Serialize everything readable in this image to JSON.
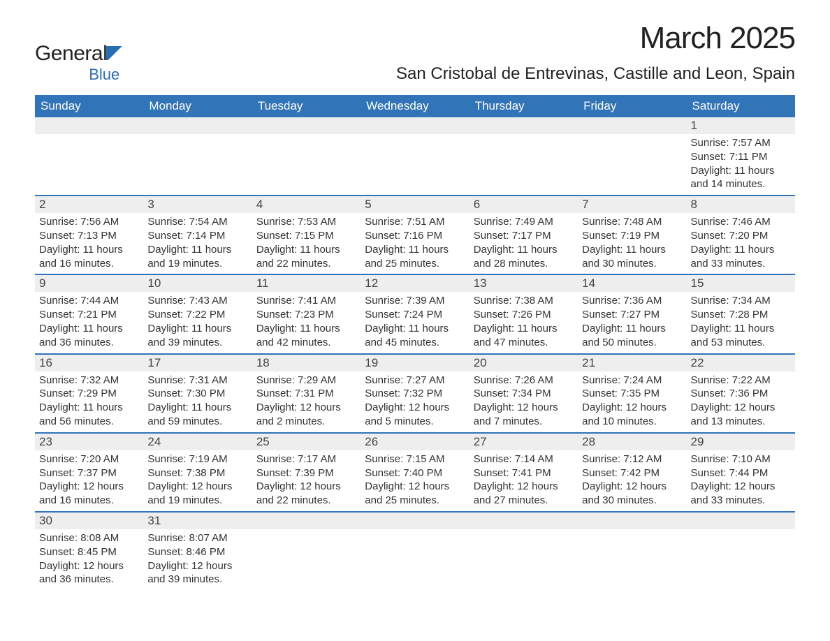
{
  "logo": {
    "word1": "General",
    "word2": "Blue"
  },
  "title": "March 2025",
  "location": "San Cristobal de Entrevinas, Castille and Leon, Spain",
  "colors": {
    "header_bg": "#3174b8",
    "header_text": "#ffffff",
    "daynum_bg": "#eeeeee",
    "row_divider": "#3174b8",
    "body_text": "#333333",
    "logo_blue": "#2a6db5"
  },
  "day_names": [
    "Sunday",
    "Monday",
    "Tuesday",
    "Wednesday",
    "Thursday",
    "Friday",
    "Saturday"
  ],
  "labels": {
    "sunrise": "Sunrise:",
    "sunset": "Sunset:",
    "daylight": "Daylight:"
  },
  "weeks": [
    [
      null,
      null,
      null,
      null,
      null,
      null,
      {
        "n": "1",
        "sr": "7:57 AM",
        "ss": "7:11 PM",
        "dl": "11 hours and 14 minutes."
      }
    ],
    [
      {
        "n": "2",
        "sr": "7:56 AM",
        "ss": "7:13 PM",
        "dl": "11 hours and 16 minutes."
      },
      {
        "n": "3",
        "sr": "7:54 AM",
        "ss": "7:14 PM",
        "dl": "11 hours and 19 minutes."
      },
      {
        "n": "4",
        "sr": "7:53 AM",
        "ss": "7:15 PM",
        "dl": "11 hours and 22 minutes."
      },
      {
        "n": "5",
        "sr": "7:51 AM",
        "ss": "7:16 PM",
        "dl": "11 hours and 25 minutes."
      },
      {
        "n": "6",
        "sr": "7:49 AM",
        "ss": "7:17 PM",
        "dl": "11 hours and 28 minutes."
      },
      {
        "n": "7",
        "sr": "7:48 AM",
        "ss": "7:19 PM",
        "dl": "11 hours and 30 minutes."
      },
      {
        "n": "8",
        "sr": "7:46 AM",
        "ss": "7:20 PM",
        "dl": "11 hours and 33 minutes."
      }
    ],
    [
      {
        "n": "9",
        "sr": "7:44 AM",
        "ss": "7:21 PM",
        "dl": "11 hours and 36 minutes."
      },
      {
        "n": "10",
        "sr": "7:43 AM",
        "ss": "7:22 PM",
        "dl": "11 hours and 39 minutes."
      },
      {
        "n": "11",
        "sr": "7:41 AM",
        "ss": "7:23 PM",
        "dl": "11 hours and 42 minutes."
      },
      {
        "n": "12",
        "sr": "7:39 AM",
        "ss": "7:24 PM",
        "dl": "11 hours and 45 minutes."
      },
      {
        "n": "13",
        "sr": "7:38 AM",
        "ss": "7:26 PM",
        "dl": "11 hours and 47 minutes."
      },
      {
        "n": "14",
        "sr": "7:36 AM",
        "ss": "7:27 PM",
        "dl": "11 hours and 50 minutes."
      },
      {
        "n": "15",
        "sr": "7:34 AM",
        "ss": "7:28 PM",
        "dl": "11 hours and 53 minutes."
      }
    ],
    [
      {
        "n": "16",
        "sr": "7:32 AM",
        "ss": "7:29 PM",
        "dl": "11 hours and 56 minutes."
      },
      {
        "n": "17",
        "sr": "7:31 AM",
        "ss": "7:30 PM",
        "dl": "11 hours and 59 minutes."
      },
      {
        "n": "18",
        "sr": "7:29 AM",
        "ss": "7:31 PM",
        "dl": "12 hours and 2 minutes."
      },
      {
        "n": "19",
        "sr": "7:27 AM",
        "ss": "7:32 PM",
        "dl": "12 hours and 5 minutes."
      },
      {
        "n": "20",
        "sr": "7:26 AM",
        "ss": "7:34 PM",
        "dl": "12 hours and 7 minutes."
      },
      {
        "n": "21",
        "sr": "7:24 AM",
        "ss": "7:35 PM",
        "dl": "12 hours and 10 minutes."
      },
      {
        "n": "22",
        "sr": "7:22 AM",
        "ss": "7:36 PM",
        "dl": "12 hours and 13 minutes."
      }
    ],
    [
      {
        "n": "23",
        "sr": "7:20 AM",
        "ss": "7:37 PM",
        "dl": "12 hours and 16 minutes."
      },
      {
        "n": "24",
        "sr": "7:19 AM",
        "ss": "7:38 PM",
        "dl": "12 hours and 19 minutes."
      },
      {
        "n": "25",
        "sr": "7:17 AM",
        "ss": "7:39 PM",
        "dl": "12 hours and 22 minutes."
      },
      {
        "n": "26",
        "sr": "7:15 AM",
        "ss": "7:40 PM",
        "dl": "12 hours and 25 minutes."
      },
      {
        "n": "27",
        "sr": "7:14 AM",
        "ss": "7:41 PM",
        "dl": "12 hours and 27 minutes."
      },
      {
        "n": "28",
        "sr": "7:12 AM",
        "ss": "7:42 PM",
        "dl": "12 hours and 30 minutes."
      },
      {
        "n": "29",
        "sr": "7:10 AM",
        "ss": "7:44 PM",
        "dl": "12 hours and 33 minutes."
      }
    ],
    [
      {
        "n": "30",
        "sr": "8:08 AM",
        "ss": "8:45 PM",
        "dl": "12 hours and 36 minutes."
      },
      {
        "n": "31",
        "sr": "8:07 AM",
        "ss": "8:46 PM",
        "dl": "12 hours and 39 minutes."
      },
      null,
      null,
      null,
      null,
      null
    ]
  ]
}
